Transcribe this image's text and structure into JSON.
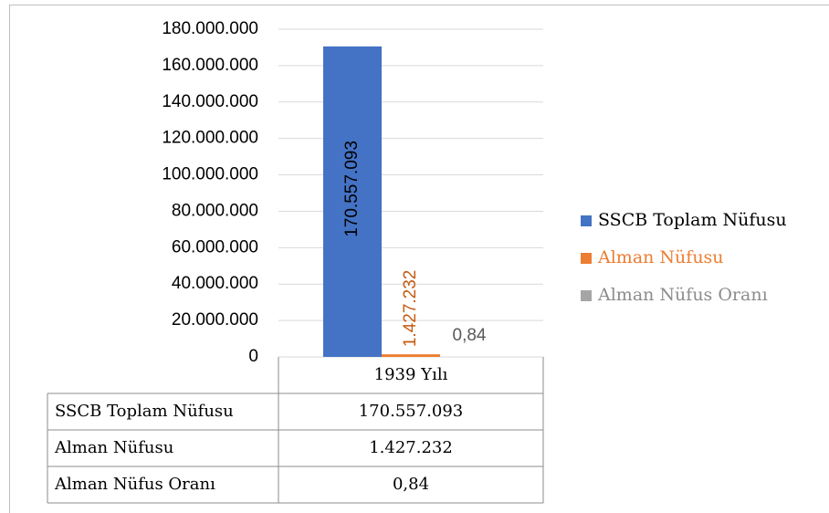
{
  "chart_data": {
    "type": "bar",
    "categories": [
      "1939 Yılı"
    ],
    "series": [
      {
        "name": "SSCB Toplam Nüfusu",
        "color": "#4472c4",
        "label_color": "#000000",
        "label_rotated": true,
        "values": [
          170557093
        ],
        "value_labels": [
          "170.557.093"
        ]
      },
      {
        "name": "Alman Nüfusu",
        "color": "#ed7d31",
        "label_color": "#c55a11",
        "label_rotated": true,
        "values": [
          1427232
        ],
        "value_labels": [
          "1.427.232"
        ]
      },
      {
        "name": "Alman Nüfus Oranı",
        "color": "#a5a5a5",
        "label_color": "#595959",
        "label_rotated": false,
        "values": [
          0.84
        ],
        "value_labels": [
          "0,84"
        ]
      }
    ],
    "ylim": [
      0,
      180000000
    ],
    "yticks": [
      {
        "value": 0,
        "label": "0"
      },
      {
        "value": 20000000,
        "label": "20.000.000"
      },
      {
        "value": 40000000,
        "label": "40.000.000"
      },
      {
        "value": 60000000,
        "label": "60.000.000"
      },
      {
        "value": 80000000,
        "label": "80.000.000"
      },
      {
        "value": 100000000,
        "label": "100.000.000"
      },
      {
        "value": 120000000,
        "label": "120.000.000"
      },
      {
        "value": 140000000,
        "label": "140.000.000"
      },
      {
        "value": 160000000,
        "label": "160.000.000"
      },
      {
        "value": 180000000,
        "label": "180.000.000"
      }
    ],
    "grid": true,
    "legend": "right",
    "data_table": true
  }
}
